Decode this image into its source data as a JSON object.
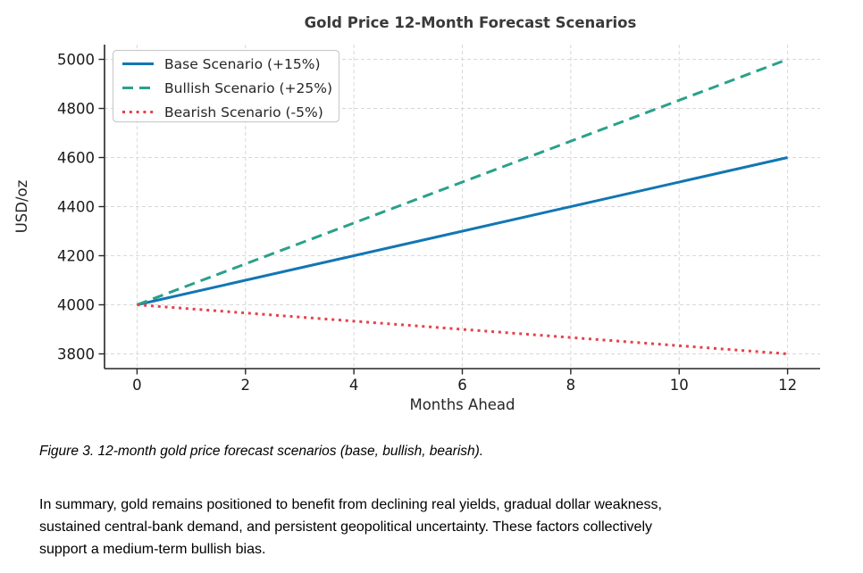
{
  "chart_data": {
    "type": "line",
    "title": "Gold Price 12-Month Forecast Scenarios",
    "xlabel": "Months Ahead",
    "ylabel": "USD/oz",
    "x": [
      0,
      12
    ],
    "series": [
      {
        "name": "Base Scenario (+15%)",
        "values": [
          4000,
          4600
        ],
        "color": "#1276b4",
        "style": "solid"
      },
      {
        "name": "Bullish Scenario (+25%)",
        "values": [
          4000,
          5000
        ],
        "color": "#2aa18a",
        "style": "dashed"
      },
      {
        "name": "Bearish Scenario (-5%)",
        "values": [
          4000,
          3800
        ],
        "color": "#e5414b",
        "style": "dotted"
      }
    ],
    "xticks": [
      0,
      2,
      4,
      6,
      8,
      10,
      12
    ],
    "yticks": [
      3800,
      4000,
      4200,
      4400,
      4600,
      4800,
      5000
    ],
    "xlim": [
      -0.6,
      12.6
    ],
    "ylim": [
      3740,
      5060
    ],
    "grid": true,
    "legend_position": "upper left",
    "colors": {
      "grid": "#d8d8d8",
      "spine": "#262626",
      "tick_label": "#1a1a1a",
      "title": "#3a3a3a",
      "legend_border": "#cccccc",
      "legend_bg": "#ffffff"
    }
  },
  "caption": {
    "text": "Figure 3. 12-month gold price forecast scenarios (base, bullish, bearish)."
  },
  "summary": {
    "text": "In summary, gold remains positioned to benefit from declining real yields, gradual dollar weakness,\nsustained central-bank demand, and persistent geopolitical uncertainty. These factors collectively\nsupport a medium-term bullish bias."
  }
}
